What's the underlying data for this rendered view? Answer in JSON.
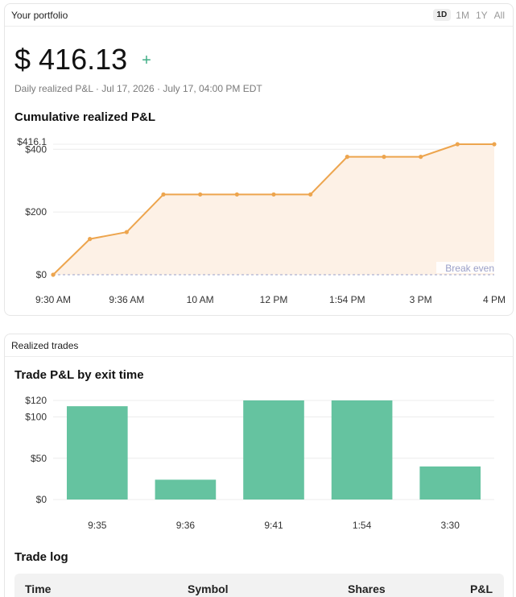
{
  "portfolio": {
    "title": "Your portfolio",
    "ranges": [
      "1D",
      "1M",
      "1Y",
      "All"
    ],
    "active_range": "1D",
    "value": "$ 416.13",
    "plus_icon": "+",
    "subline": "Daily realized P&L · Jul 17, 2026 · July 17, 04:00 PM EDT",
    "section_title": "Cumulative realized P&L"
  },
  "trades": {
    "title": "Realized trades",
    "section_title": "Trade P&L by exit time",
    "log_title": "Trade log",
    "columns": [
      "Time",
      "Symbol",
      "Shares",
      "P&L"
    ]
  },
  "colors": {
    "line": "#eda54e",
    "area": "#fdf1e6",
    "bar": "#65c3a0",
    "accent": "#3fae85"
  },
  "chart_data": [
    {
      "type": "area",
      "title": "Cumulative realized P&L",
      "x_tick_labels": [
        "9:30 AM",
        "9:36 AM",
        "10 AM",
        "12 PM",
        "1:54 PM",
        "3 PM",
        "4 PM"
      ],
      "y_tick_labels": [
        "$0",
        "$200",
        "$400"
      ],
      "y_ticks": [
        0,
        200,
        400
      ],
      "ylim": [
        0,
        416.13
      ],
      "max_label": "$416.1",
      "reference_line": {
        "value": 0,
        "label": "Break even"
      },
      "values": [
        0,
        114,
        136,
        256,
        256,
        256,
        256,
        256,
        376,
        376,
        376,
        416.13,
        416.13
      ],
      "grid": true
    },
    {
      "type": "bar",
      "title": "Trade P&L by exit time",
      "categories": [
        "9:35",
        "9:36",
        "9:41",
        "1:54",
        "3:30"
      ],
      "values": [
        113,
        24,
        120,
        120,
        40
      ],
      "y_tick_labels": [
        "$0",
        "$50",
        "$100",
        "$120"
      ],
      "y_ticks": [
        0,
        50,
        100,
        120
      ],
      "ylim": [
        0,
        120
      ],
      "grid": true
    }
  ]
}
